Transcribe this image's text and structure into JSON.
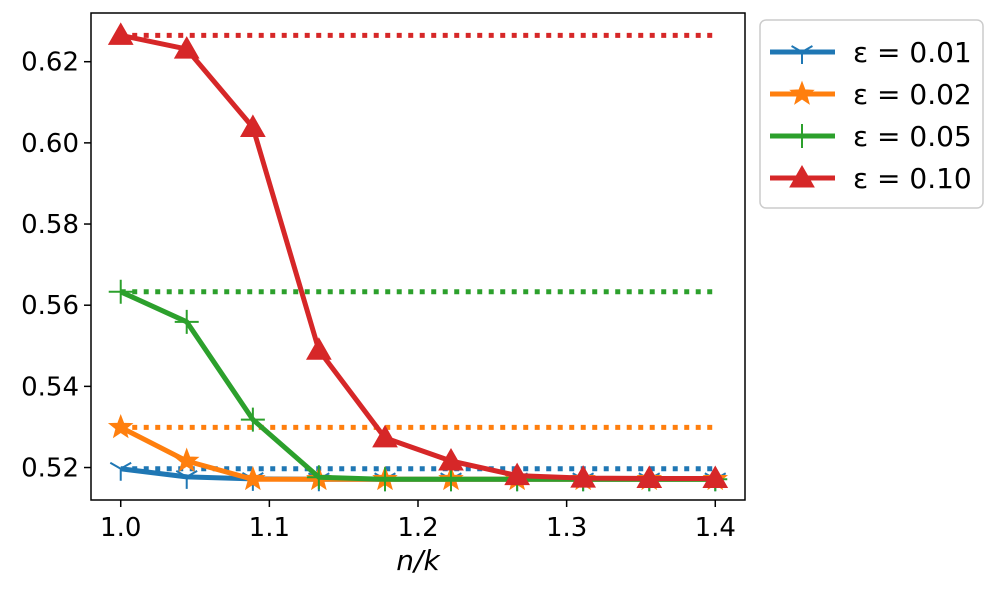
{
  "chart_data": {
    "type": "line",
    "title": "",
    "xlabel": "n/k",
    "ylabel": "",
    "xlim": [
      0.98,
      1.42
    ],
    "ylim": [
      0.512,
      0.632
    ],
    "xticks": [
      1.0,
      1.1,
      1.2,
      1.3,
      1.4
    ],
    "xtick_labels": [
      "1.0",
      "1.1",
      "1.2",
      "1.3",
      "1.4"
    ],
    "yticks": [
      0.52,
      0.54,
      0.56,
      0.58,
      0.6,
      0.62
    ],
    "ytick_labels": [
      "0.52",
      "0.54",
      "0.56",
      "0.58",
      "0.60",
      "0.62"
    ],
    "grid": false,
    "legend_position": "outside-top-right",
    "x": [
      1.0,
      1.0444,
      1.0889,
      1.1333,
      1.1778,
      1.2222,
      1.2667,
      1.3111,
      1.3556,
      1.4
    ],
    "series": [
      {
        "name": "ε = 0.01",
        "color": "#1f77b4",
        "marker": "tri-down",
        "values": [
          0.5197,
          0.5177,
          0.5172,
          0.5171,
          0.5171,
          0.5171,
          0.5171,
          0.5171,
          0.5171,
          0.5171
        ],
        "reference": 0.5197
      },
      {
        "name": "ε = 0.02",
        "color": "#ff7f0e",
        "marker": "star",
        "values": [
          0.5299,
          0.5216,
          0.5171,
          0.5171,
          0.5171,
          0.5171,
          0.5171,
          0.5171,
          0.5171,
          0.5171
        ],
        "reference": 0.5299
      },
      {
        "name": "ε = 0.05",
        "color": "#2ca02c",
        "marker": "plus",
        "values": [
          0.5633,
          0.5559,
          0.5318,
          0.5176,
          0.5171,
          0.5171,
          0.5171,
          0.5171,
          0.5171,
          0.5171
        ],
        "reference": 0.5633
      },
      {
        "name": "ε = 0.10",
        "color": "#d62728",
        "marker": "triangle-up",
        "values": [
          0.6265,
          0.6231,
          0.6038,
          0.5489,
          0.5273,
          0.5216,
          0.518,
          0.5174,
          0.5173,
          0.5173
        ],
        "reference": 0.6265
      }
    ]
  }
}
